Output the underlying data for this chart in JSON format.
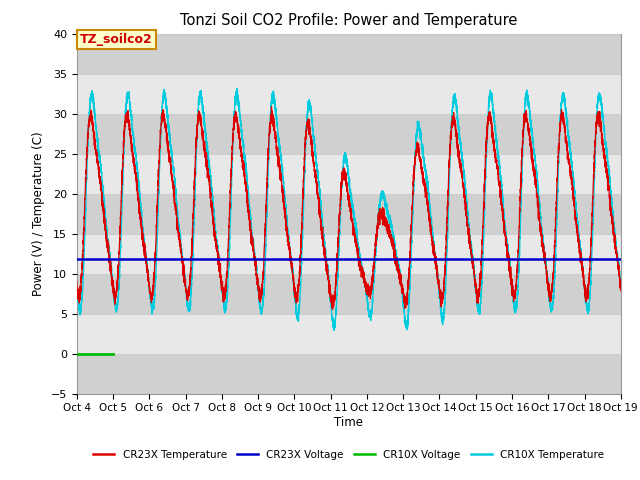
{
  "title": "Tonzi Soil CO2 Profile: Power and Temperature",
  "xlabel": "Time",
  "ylabel": "Power (V) / Temperature (C)",
  "ylim": [
    -5,
    40
  ],
  "xlim": [
    0,
    15
  ],
  "x_tick_labels": [
    "Oct 4",
    "Oct 5",
    "Oct 6",
    "Oct 7",
    "Oct 8",
    "Oct 9",
    "Oct 10",
    "Oct 11",
    "Oct 12",
    "Oct 13",
    "Oct 14",
    "Oct 15",
    "Oct 16",
    "Oct 17",
    "Oct 18",
    "Oct 19"
  ],
  "cr23x_voltage_value": 11.8,
  "cr10x_voltage_value": -0.1,
  "cr10x_voltage_x_end": 1.0,
  "background_color": "#ffffff",
  "plot_bg_color": "#e0e0e0",
  "band_color_dark": "#d0d0d0",
  "band_color_light": "#e8e8e8",
  "label_box_text": "TZ_soilco2",
  "label_box_bg": "#ffffcc",
  "label_box_edge": "#cc8800",
  "legend_labels": [
    "CR23X Temperature",
    "CR23X Voltage",
    "CR10X Voltage",
    "CR10X Temperature"
  ],
  "cr23x_color": "#dd0000",
  "cr10x_color": "#00ccdd",
  "blue_line_color": "#0000cc",
  "green_line_color": "#00bb00",
  "grid_color": "#cccccc",
  "figsize": [
    6.4,
    4.8
  ],
  "dpi": 100
}
